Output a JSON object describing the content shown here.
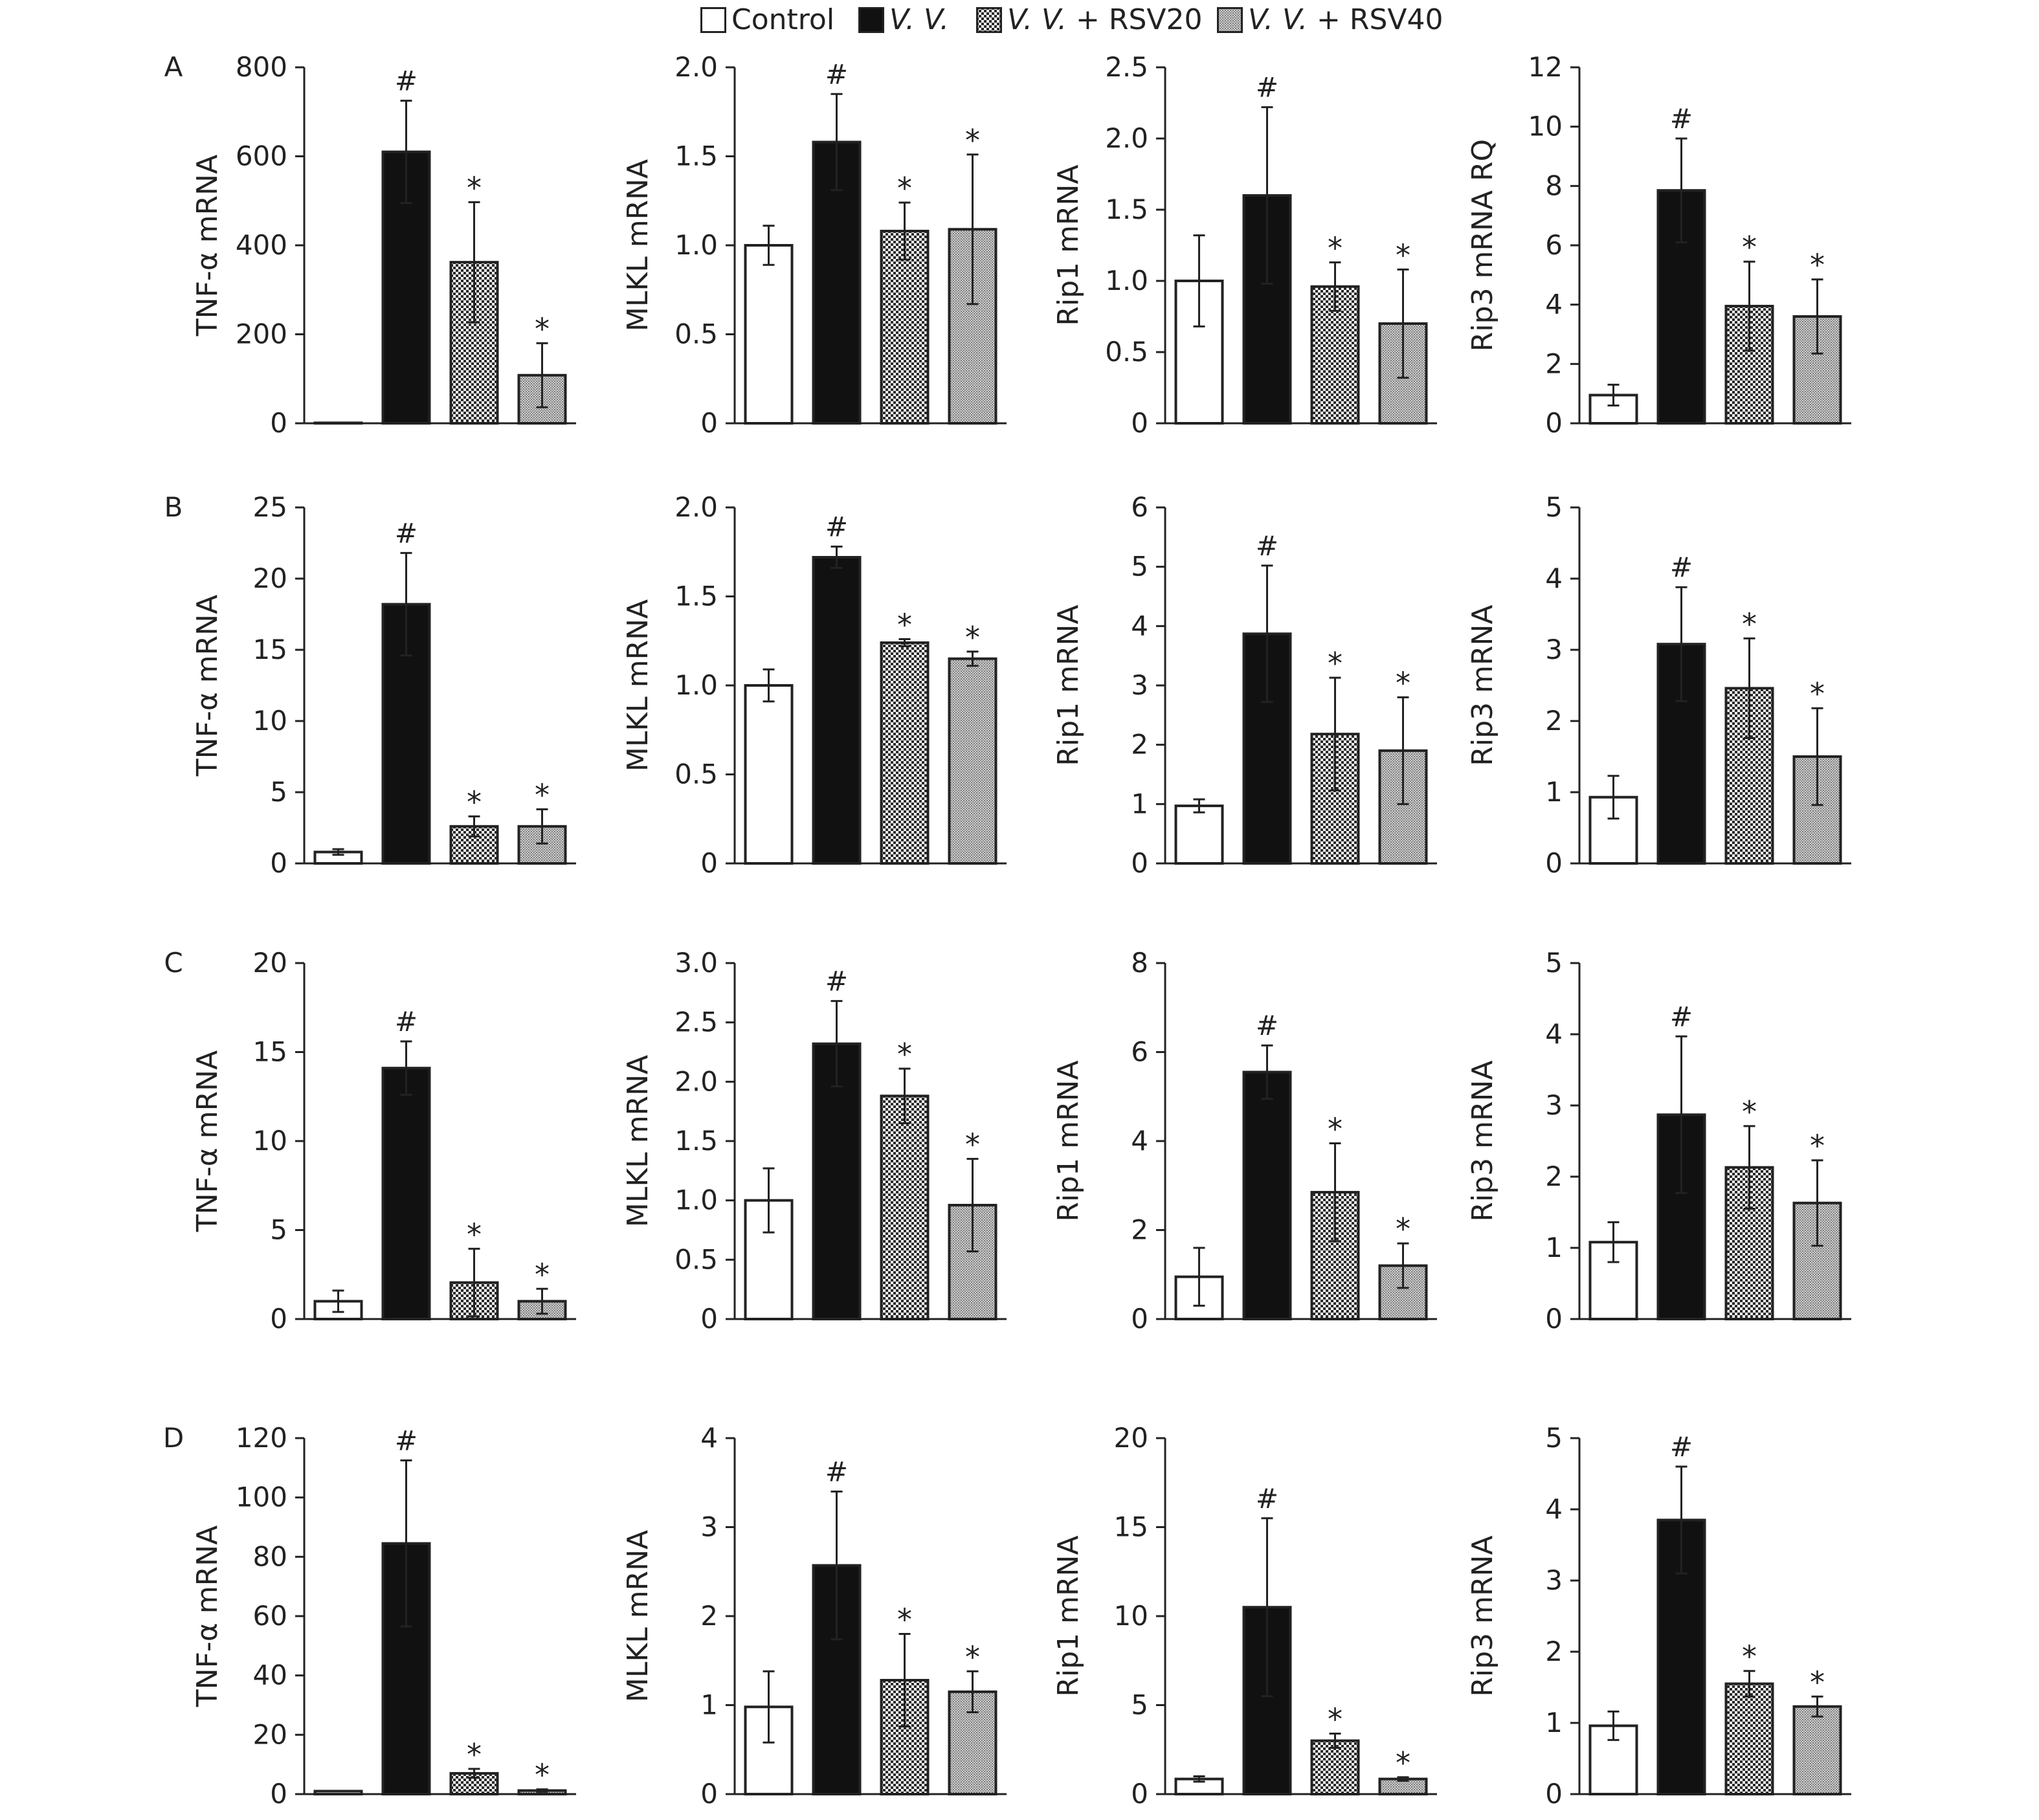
{
  "legend": [
    {
      "prefix": "Control",
      "italic": "",
      "suffix": "",
      "fill": "white"
    },
    {
      "prefix": "",
      "italic": "V. V.",
      "suffix": "",
      "fill": "black"
    },
    {
      "prefix": "",
      "italic": "V. V.",
      "suffix": " + RSV20",
      "fill": "checker"
    },
    {
      "prefix": "",
      "italic": "V. V.",
      "suffix": " + RSV40",
      "fill": "fine"
    }
  ],
  "colors": {
    "stroke": "#222222",
    "text": "#222222",
    "black_bar": "#111111"
  },
  "chart_data": [
    {
      "row": "A",
      "type": "bar",
      "ylabel": "TNF-α mRNA",
      "ylim": [
        0,
        800
      ],
      "ticks": [
        "0",
        "200",
        "400",
        "600",
        "800"
      ],
      "categories": [
        "Control",
        "V. V.",
        "V. V. + RSV20",
        "V. V. + RSV40"
      ],
      "values": [
        1,
        610,
        362,
        108
      ],
      "errors": [
        0,
        115,
        135,
        72
      ],
      "labels": [
        "",
        "#",
        "*",
        "*"
      ]
    },
    {
      "row": "",
      "type": "bar",
      "ylabel": "MLKL mRNA",
      "ylim": [
        0,
        2.0
      ],
      "ticks": [
        "0",
        "0.5",
        "1.0",
        "1.5",
        "2.0"
      ],
      "categories": [
        "Control",
        "V. V.",
        "V. V. + RSV20",
        "V. V. + RSV40"
      ],
      "values": [
        1.0,
        1.58,
        1.08,
        1.09
      ],
      "errors": [
        0.11,
        0.27,
        0.16,
        0.42
      ],
      "labels": [
        "",
        "#",
        "*",
        "*"
      ]
    },
    {
      "row": "",
      "type": "bar",
      "ylabel": "Rip1 mRNA",
      "ylim": [
        0,
        2.5
      ],
      "ticks": [
        "0",
        "0.5",
        "1.0",
        "1.5",
        "2.0",
        "2.5"
      ],
      "categories": [
        "Control",
        "V. V.",
        "V. V. + RSV20",
        "V. V. + RSV40"
      ],
      "values": [
        1.0,
        1.6,
        0.96,
        0.7
      ],
      "errors": [
        0.32,
        0.62,
        0.17,
        0.38
      ],
      "labels": [
        "",
        "#",
        "*",
        "*"
      ]
    },
    {
      "row": "",
      "type": "bar",
      "ylabel": "Rip3 mRNA RQ",
      "ylim": [
        0,
        12
      ],
      "ticks": [
        "0",
        "2",
        "4",
        "6",
        "8",
        "10",
        "12"
      ],
      "categories": [
        "Control",
        "V. V.",
        "V. V. + RSV20",
        "V. V. + RSV40"
      ],
      "values": [
        0.95,
        7.85,
        3.95,
        3.6
      ],
      "errors": [
        0.35,
        1.75,
        1.5,
        1.25
      ],
      "labels": [
        "",
        "#",
        "*",
        "*"
      ]
    },
    {
      "row": "B",
      "type": "bar",
      "ylabel": "TNF-α mRNA",
      "ylim": [
        0,
        25
      ],
      "ticks": [
        "0",
        "5",
        "10",
        "15",
        "20",
        "25"
      ],
      "categories": [
        "Control",
        "V. V.",
        "V. V. + RSV20",
        "V. V. + RSV40"
      ],
      "values": [
        0.8,
        18.2,
        2.6,
        2.6
      ],
      "errors": [
        0.2,
        3.6,
        0.7,
        1.2
      ],
      "labels": [
        "",
        "#",
        "*",
        "*"
      ]
    },
    {
      "row": "",
      "type": "bar",
      "ylabel": "MLKL mRNA",
      "ylim": [
        0,
        2.0
      ],
      "ticks": [
        "0",
        "0.5",
        "1.0",
        "1.5",
        "2.0"
      ],
      "categories": [
        "Control",
        "V. V.",
        "V. V. + RSV20",
        "V. V. + RSV40"
      ],
      "values": [
        1.0,
        1.72,
        1.24,
        1.15
      ],
      "errors": [
        0.09,
        0.06,
        0.02,
        0.04
      ],
      "labels": [
        "",
        "#",
        "*",
        "*"
      ]
    },
    {
      "row": "",
      "type": "bar",
      "ylabel": "Rip1 mRNA",
      "ylim": [
        0,
        6
      ],
      "ticks": [
        "0",
        "1",
        "2",
        "3",
        "4",
        "5",
        "6"
      ],
      "categories": [
        "Control",
        "V. V.",
        "V. V. + RSV20",
        "V. V. + RSV40"
      ],
      "values": [
        0.97,
        3.87,
        2.18,
        1.9
      ],
      "errors": [
        0.11,
        1.15,
        0.95,
        0.9
      ],
      "labels": [
        "",
        "#",
        "*",
        "*"
      ]
    },
    {
      "row": "",
      "type": "bar",
      "ylabel": "Rip3 mRNA",
      "ylim": [
        0,
        5
      ],
      "ticks": [
        "0",
        "1",
        "2",
        "3",
        "4",
        "5"
      ],
      "categories": [
        "Control",
        "V. V.",
        "V. V. + RSV20",
        "V. V. + RSV40"
      ],
      "values": [
        0.93,
        3.08,
        2.46,
        1.5
      ],
      "errors": [
        0.3,
        0.8,
        0.7,
        0.68
      ],
      "labels": [
        "",
        "#",
        "*",
        "*"
      ]
    },
    {
      "row": "C",
      "type": "bar",
      "ylabel": "TNF-α mRNA",
      "ylim": [
        0,
        20
      ],
      "ticks": [
        "0",
        "5",
        "10",
        "15",
        "20"
      ],
      "categories": [
        "Control",
        "V. V.",
        "V. V. + RSV20",
        "V. V. + RSV40"
      ],
      "values": [
        1.0,
        14.1,
        2.05,
        1.0
      ],
      "errors": [
        0.6,
        1.5,
        1.9,
        0.7
      ],
      "labels": [
        "",
        "#",
        "*",
        "*"
      ]
    },
    {
      "row": "",
      "type": "bar",
      "ylabel": "MLKL mRNA",
      "ylim": [
        0,
        3.0
      ],
      "ticks": [
        "0",
        "0.5",
        "1.0",
        "1.5",
        "2.0",
        "2.5",
        "3.0"
      ],
      "categories": [
        "Control",
        "V. V.",
        "V. V. + RSV20",
        "V. V. + RSV40"
      ],
      "values": [
        1.0,
        2.32,
        1.88,
        0.96
      ],
      "errors": [
        0.27,
        0.36,
        0.23,
        0.39
      ],
      "labels": [
        "",
        "#",
        "*",
        "*"
      ]
    },
    {
      "row": "",
      "type": "bar",
      "ylabel": "Rip1 mRNA",
      "ylim": [
        0,
        8
      ],
      "ticks": [
        "0",
        "2",
        "4",
        "6",
        "8"
      ],
      "categories": [
        "Control",
        "V. V.",
        "V. V. + RSV20",
        "V. V. + RSV40"
      ],
      "values": [
        0.95,
        5.55,
        2.85,
        1.2
      ],
      "errors": [
        0.65,
        0.6,
        1.1,
        0.5
      ],
      "labels": [
        "",
        "#",
        "*",
        "*"
      ]
    },
    {
      "row": "",
      "type": "bar",
      "ylabel": "Rip3 mRNA",
      "ylim": [
        0,
        5
      ],
      "ticks": [
        "0",
        "1",
        "2",
        "3",
        "4",
        "5"
      ],
      "categories": [
        "Control",
        "V. V.",
        "V. V. + RSV20",
        "V. V. + RSV40"
      ],
      "values": [
        1.08,
        2.87,
        2.13,
        1.63
      ],
      "errors": [
        0.28,
        1.1,
        0.58,
        0.6
      ],
      "labels": [
        "",
        "#",
        "*",
        "*"
      ]
    },
    {
      "row": "D",
      "type": "bar",
      "ylabel": "TNF-α mRNA",
      "ylim": [
        0,
        120
      ],
      "ticks": [
        "0",
        "20",
        "40",
        "60",
        "80",
        "100",
        "120"
      ],
      "categories": [
        "Control",
        "V. V.",
        "V. V. + RSV20",
        "V. V. + RSV40"
      ],
      "values": [
        1,
        84.5,
        7,
        1.2
      ],
      "errors": [
        0,
        28,
        1.5,
        0.4
      ],
      "labels": [
        "",
        "#",
        "*",
        "*"
      ]
    },
    {
      "row": "",
      "type": "bar",
      "ylabel": "MLKL mRNA",
      "ylim": [
        0,
        4
      ],
      "ticks": [
        "0",
        "1",
        "2",
        "3",
        "4"
      ],
      "categories": [
        "Control",
        "V. V.",
        "V. V. + RSV20",
        "V. V. + RSV40"
      ],
      "values": [
        0.98,
        2.57,
        1.28,
        1.15
      ],
      "errors": [
        0.4,
        0.83,
        0.52,
        0.23
      ],
      "labels": [
        "",
        "#",
        "*",
        "*"
      ]
    },
    {
      "row": "",
      "type": "bar",
      "ylabel": "Rip1 mRNA",
      "ylim": [
        0,
        20
      ],
      "ticks": [
        "0",
        "5",
        "10",
        "15",
        "20"
      ],
      "categories": [
        "Control",
        "V. V.",
        "V. V. + RSV20",
        "V. V. + RSV40"
      ],
      "values": [
        0.85,
        10.5,
        3.0,
        0.85
      ],
      "errors": [
        0.15,
        5.0,
        0.4,
        0.1
      ],
      "labels": [
        "",
        "#",
        "*",
        "*"
      ]
    },
    {
      "row": "",
      "type": "bar",
      "ylabel": "Rip3 mRNA",
      "ylim": [
        0,
        5
      ],
      "ticks": [
        "0",
        "1",
        "2",
        "3",
        "4",
        "5"
      ],
      "categories": [
        "Control",
        "V. V.",
        "V. V. + RSV20",
        "V. V. + RSV40"
      ],
      "values": [
        0.96,
        3.85,
        1.55,
        1.23
      ],
      "errors": [
        0.2,
        0.75,
        0.18,
        0.14
      ],
      "labels": [
        "",
        "#",
        "*",
        "*"
      ]
    }
  ]
}
